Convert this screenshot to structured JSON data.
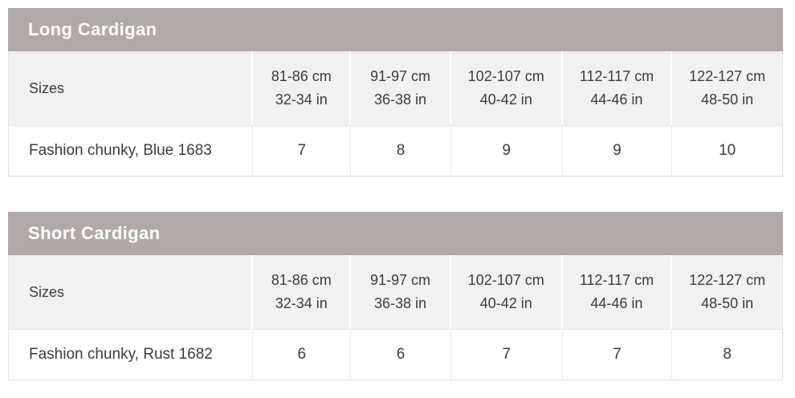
{
  "colors": {
    "title_bar_bg": "#b3a8a8",
    "title_text": "#ffffff",
    "header_row_bg": "#f2f1f0",
    "data_row_bg": "#ffffff",
    "border": "#e6e3e2",
    "body_text": "#3e3b3b"
  },
  "tables": [
    {
      "title": "Long Cardigan",
      "header": {
        "label": "Sizes",
        "size_columns": [
          {
            "cm": "81-86 cm",
            "in": "32-34 in"
          },
          {
            "cm": "91-97 cm",
            "in": "36-38 in"
          },
          {
            "cm": "102-107 cm",
            "in": "40-42 in"
          },
          {
            "cm": "112-117 cm",
            "in": "44-46 in"
          },
          {
            "cm": "122-127 cm",
            "in": "48-50 in"
          }
        ]
      },
      "rows": [
        {
          "label": "Fashion chunky, Blue 1683",
          "values": [
            "7",
            "8",
            "9",
            "9",
            "10"
          ]
        }
      ]
    },
    {
      "title": "Short Cardigan",
      "header": {
        "label": "Sizes",
        "size_columns": [
          {
            "cm": "81-86 cm",
            "in": "32-34 in"
          },
          {
            "cm": "91-97 cm",
            "in": "36-38 in"
          },
          {
            "cm": "102-107 cm",
            "in": "40-42 in"
          },
          {
            "cm": "112-117 cm",
            "in": "44-46 in"
          },
          {
            "cm": "122-127 cm",
            "in": "48-50 in"
          }
        ]
      },
      "rows": [
        {
          "label": "Fashion chunky, Rust 1682",
          "values": [
            "6",
            "6",
            "7",
            "7",
            "8"
          ]
        }
      ]
    }
  ]
}
